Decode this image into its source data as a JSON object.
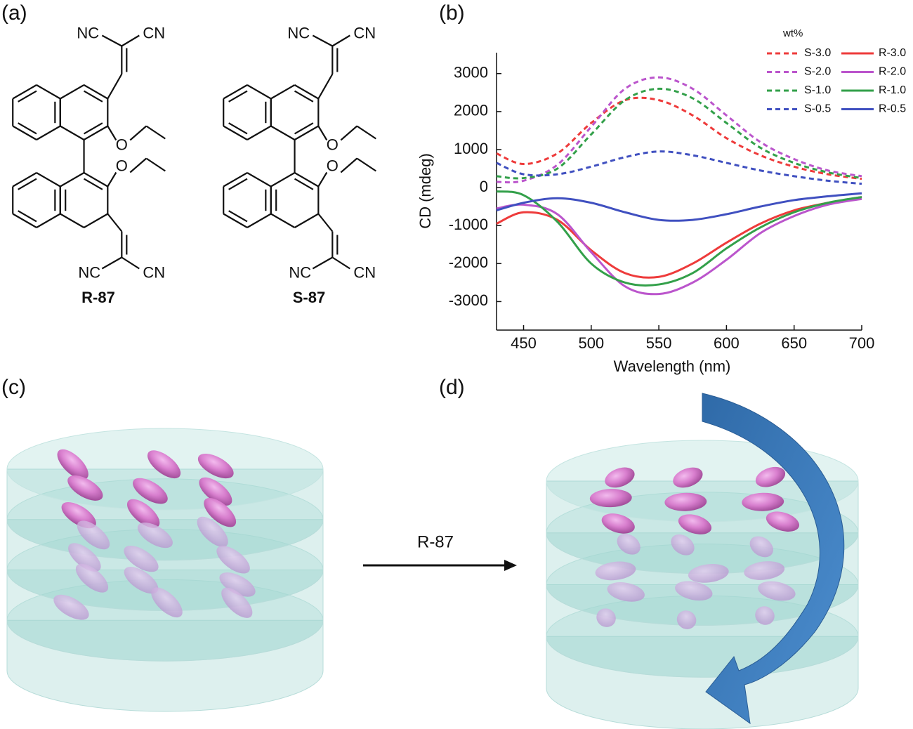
{
  "figure": {
    "panel_labels": [
      "(a)",
      "(b)",
      "(c)",
      "(d)"
    ],
    "structures": [
      {
        "label": "R-87",
        "atoms": [
          "NC",
          "CN",
          "O",
          "O",
          "NC",
          "CN"
        ]
      },
      {
        "label": "S-87",
        "atoms": [
          "NC",
          "CN",
          "O",
          "O",
          "NC",
          "CN"
        ]
      }
    ],
    "arrow_label": "R-87"
  },
  "chart_data": {
    "type": "line",
    "xlabel": "Wavelength (nm)",
    "ylabel": "CD (mdeg)",
    "legend_title": "wt%",
    "legend": "upper right",
    "xlim": [
      430,
      700
    ],
    "ylim": [
      -3750,
      3550
    ],
    "xticks": [
      450,
      500,
      550,
      600,
      650,
      700
    ],
    "yticks": [
      -3000,
      -2000,
      -1000,
      0,
      1000,
      2000,
      3000
    ],
    "x": [
      430,
      450,
      475,
      500,
      525,
      550,
      575,
      600,
      625,
      650,
      675,
      700
    ],
    "series": [
      {
        "name": "S-3.0",
        "color": "#ee3b3b",
        "linestyle": "dashed",
        "values": [
          900,
          620,
          900,
          1700,
          2300,
          2300,
          1900,
          1300,
          850,
          550,
          350,
          230
        ]
      },
      {
        "name": "R-3.0",
        "color": "#ee3b3b",
        "linestyle": "solid",
        "values": [
          -950,
          -650,
          -850,
          -1650,
          -2250,
          -2350,
          -2000,
          -1450,
          -950,
          -600,
          -400,
          -250
        ]
      },
      {
        "name": "S-2.0",
        "color": "#bb55cc",
        "linestyle": "dashed",
        "values": [
          150,
          180,
          600,
          1600,
          2600,
          2900,
          2600,
          1900,
          1200,
          750,
          450,
          300
        ]
      },
      {
        "name": "R-2.0",
        "color": "#bb55cc",
        "linestyle": "solid",
        "values": [
          -550,
          -450,
          -700,
          -1700,
          -2600,
          -2800,
          -2500,
          -1900,
          -1200,
          -750,
          -450,
          -300
        ]
      },
      {
        "name": "S-1.0",
        "color": "#33a04a",
        "linestyle": "dashed",
        "values": [
          300,
          250,
          500,
          1400,
          2300,
          2600,
          2350,
          1700,
          1050,
          650,
          400,
          250
        ]
      },
      {
        "name": "R-1.0",
        "color": "#33a04a",
        "linestyle": "solid",
        "values": [
          -100,
          -200,
          -900,
          -2000,
          -2500,
          -2550,
          -2250,
          -1600,
          -1050,
          -650,
          -400,
          -250
        ]
      },
      {
        "name": "S-0.5",
        "color": "#4050c0",
        "linestyle": "dashed",
        "values": [
          650,
          350,
          350,
          550,
          800,
          950,
          850,
          650,
          450,
          300,
          180,
          100
        ]
      },
      {
        "name": "R-0.5",
        "color": "#4050c0",
        "linestyle": "solid",
        "values": [
          -600,
          -400,
          -280,
          -400,
          -650,
          -850,
          -850,
          -700,
          -500,
          -330,
          -230,
          -150
        ]
      }
    ]
  }
}
